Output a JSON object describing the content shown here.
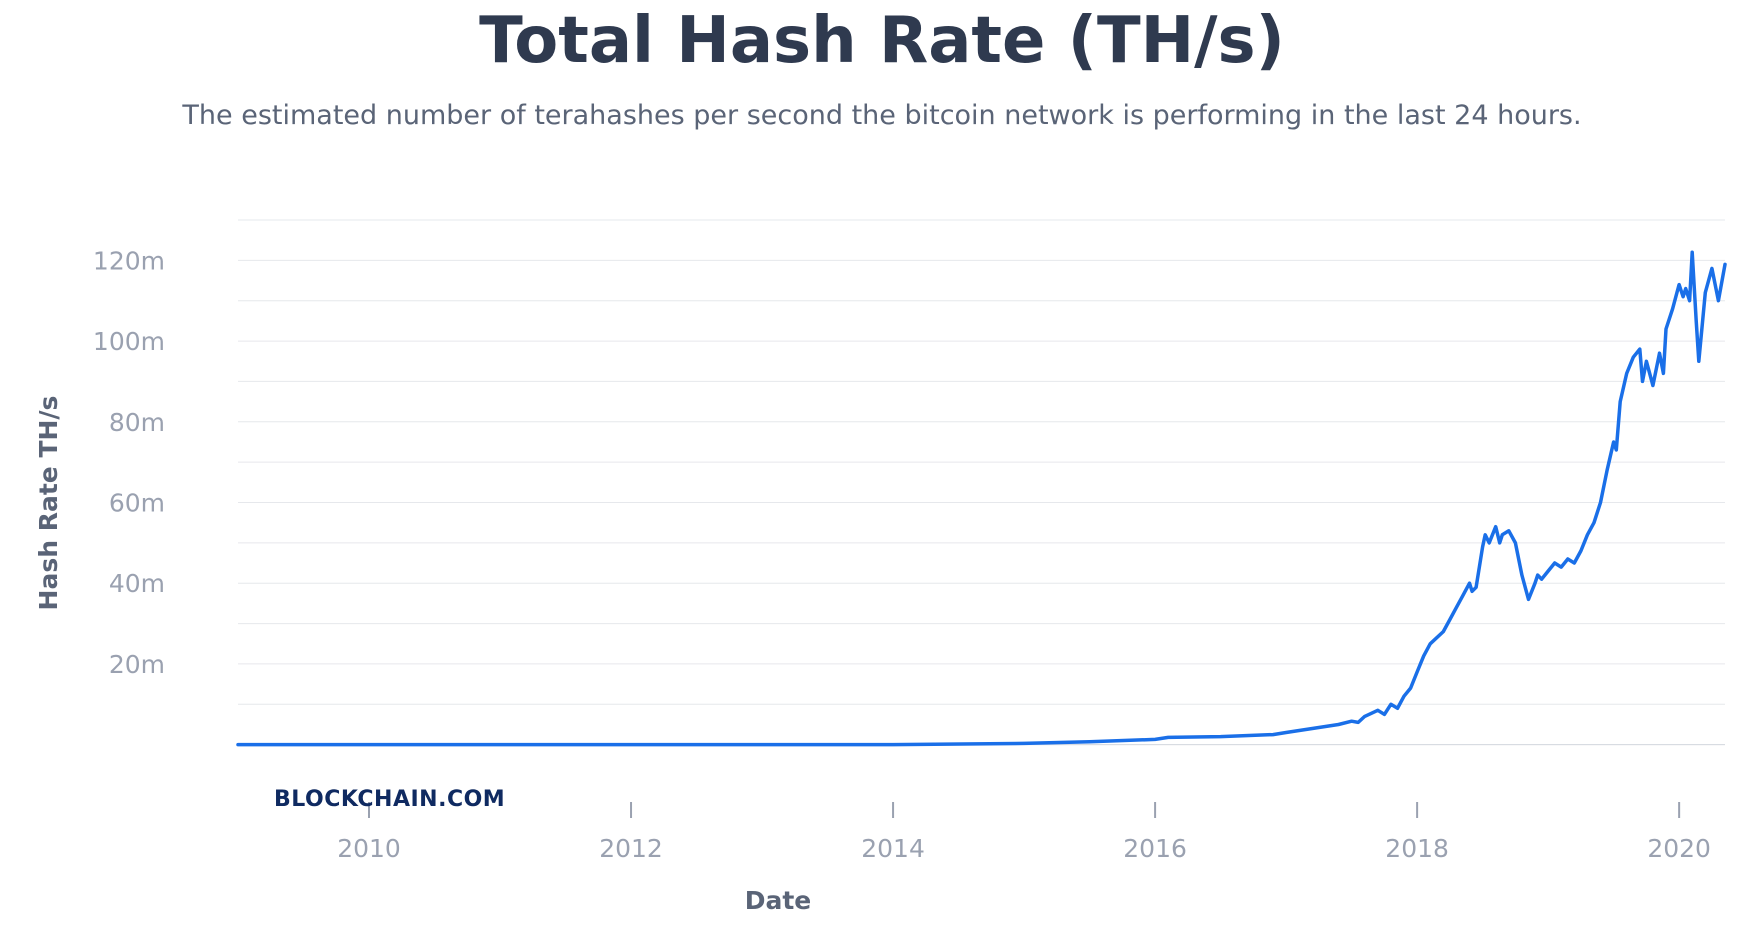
{
  "chart_data": {
    "type": "line",
    "title": "Total Hash Rate (TH/s)",
    "subtitle": "The estimated number of terahashes per second the bitcoin network is performing in the last 24 hours.",
    "xlabel": "Date",
    "ylabel": "Hash Rate TH/s",
    "brand": "BLOCKCHAIN.COM",
    "line_color": "#1a6fe8",
    "grid": true,
    "xlim": [
      2009.0,
      2020.35
    ],
    "ylim": [
      -10000000,
      130000000
    ],
    "x_ticks": [
      {
        "value": 2010,
        "label": "2010"
      },
      {
        "value": 2012,
        "label": "2012"
      },
      {
        "value": 2014,
        "label": "2014"
      },
      {
        "value": 2016,
        "label": "2016"
      },
      {
        "value": 2018,
        "label": "2018"
      },
      {
        "value": 2020,
        "label": "2020"
      }
    ],
    "y_ticks": [
      {
        "value": 20000000,
        "label": "20m"
      },
      {
        "value": 40000000,
        "label": "40m"
      },
      {
        "value": 60000000,
        "label": "60m"
      },
      {
        "value": 80000000,
        "label": "80m"
      },
      {
        "value": 100000000,
        "label": "100m"
      },
      {
        "value": 120000000,
        "label": "120m"
      }
    ],
    "series": [
      {
        "x": [
          2009.0,
          2014.0,
          2015.0,
          2015.5,
          2016.0,
          2016.1,
          2016.5,
          2016.9,
          2017.0,
          2017.2,
          2017.4,
          2017.5,
          2017.55,
          2017.6,
          2017.7,
          2017.75,
          2017.8,
          2017.85,
          2017.9,
          2017.95,
          2018.0,
          2018.05,
          2018.1,
          2018.2,
          2018.25,
          2018.3,
          2018.35,
          2018.4,
          2018.42,
          2018.45,
          2018.5,
          2018.52,
          2018.55,
          2018.6,
          2018.63,
          2018.65,
          2018.7,
          2018.75,
          2018.8,
          2018.85,
          2018.9,
          2018.92,
          2018.95,
          2019.0,
          2019.05,
          2019.1,
          2019.15,
          2019.2,
          2019.25,
          2019.3,
          2019.35,
          2019.4,
          2019.45,
          2019.5,
          2019.52,
          2019.55,
          2019.6,
          2019.65,
          2019.7,
          2019.72,
          2019.75,
          2019.8,
          2019.85,
          2019.88,
          2019.9,
          2019.95,
          2020.0,
          2020.03,
          2020.05,
          2020.08,
          2020.1,
          2020.13,
          2020.15,
          2020.2,
          2020.25,
          2020.3,
          2020.35
        ],
        "y": [
          0,
          0,
          300000,
          700000,
          1300000,
          1800000,
          2000000,
          2500000,
          3000000,
          4000000,
          5000000,
          5800000,
          5500000,
          7000000,
          8500000,
          7500000,
          10000000,
          9000000,
          12000000,
          14000000,
          18000000,
          22000000,
          25000000,
          28000000,
          31000000,
          34000000,
          37000000,
          40000000,
          38000000,
          39000000,
          49000000,
          52000000,
          50000000,
          54000000,
          50000000,
          52000000,
          53000000,
          50000000,
          42000000,
          36000000,
          40000000,
          42000000,
          41000000,
          43000000,
          45000000,
          44000000,
          46000000,
          45000000,
          48000000,
          52000000,
          55000000,
          60000000,
          68000000,
          75000000,
          73000000,
          85000000,
          92000000,
          96000000,
          98000000,
          90000000,
          95000000,
          89000000,
          97000000,
          92000000,
          103000000,
          108000000,
          114000000,
          111000000,
          113000000,
          110000000,
          122000000,
          105000000,
          95000000,
          112000000,
          118000000,
          110000000,
          119000000
        ]
      }
    ]
  }
}
